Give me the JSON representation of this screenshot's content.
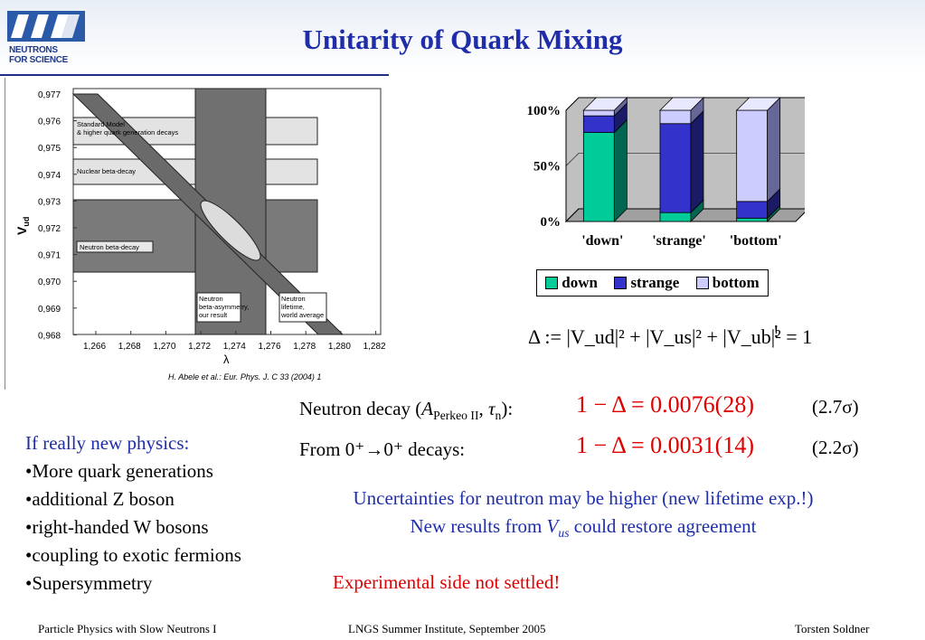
{
  "header": {
    "title": "Unitarity of Quark Mixing",
    "logo_text_line1": "NEUTRONS",
    "logo_text_line2": "FOR SCIENCE"
  },
  "plot": {
    "y_ticks": [
      "0,977",
      "0,976",
      "0,975",
      "0,974",
      "0,973",
      "0,972",
      "0,971",
      "0,970",
      "0,969",
      "0,968"
    ],
    "x_ticks": [
      "1,266",
      "1,268",
      "1,270",
      "1,272",
      "1,274",
      "1,276",
      "1,278",
      "1,280",
      "1,282"
    ],
    "y_label": "V",
    "y_label_sub": "ud",
    "x_label": "λ",
    "band_labels": {
      "standard_model_1": "Standard Model",
      "standard_model_2": "& higher quark generation decays",
      "nuclear": "Nuclear beta-decay",
      "neutron": "Neutron beta-decay",
      "asym_1": "Neutron",
      "asym_2": "beta-asymmetry,",
      "asym_3": "our result",
      "life_1": "Neutron",
      "life_2": "lifetime,",
      "life_3": "world average"
    },
    "caption": "H. Abele et al.: Eur. Phys. J. C 33 (2004) 1"
  },
  "chart_data": {
    "type": "bar",
    "categories": [
      "'down'",
      "'strange'",
      "'bottom'"
    ],
    "series": [
      {
        "name": "down",
        "values": [
          80,
          8,
          3
        ]
      },
      {
        "name": "strange",
        "values": [
          15,
          80,
          15
        ]
      },
      {
        "name": "bottom",
        "values": [
          5,
          12,
          82
        ]
      }
    ],
    "y_ticks": [
      "0%",
      "50%",
      "100%"
    ],
    "ylim": [
      0,
      100
    ],
    "colors": {
      "down": "#00cc99",
      "strange": "#3333cc",
      "bottom": "#ccccff"
    },
    "legend_placement": "bottom"
  },
  "equations": {
    "unitarity": "Δ := |V_ud|² + |V_us|² + |V_ub|² = 1",
    "bang": "!",
    "neutron_label": "Neutron decay",
    "neutron_eq": "1 − Δ = 0.0076(28)",
    "neutron_sigma": "(2.7σ)",
    "nuclear_label": "From 0⁺→0⁺ decays:",
    "nuclear_eq": "1 − Δ = 0.0031(14)",
    "nuclear_sigma": "(2.2σ)"
  },
  "notes": {
    "line1": "Uncertainties for neutron may be higher (new lifetime exp.!)",
    "line2_pre": "New results from ",
    "line2_sym": "V",
    "line2_sub": "us",
    "line2_post": " could restore agreement",
    "experimental": "Experimental side not settled!"
  },
  "physics": {
    "heading": "If really new physics:",
    "items": [
      "•More quark generations",
      "•additional Z boson",
      "•right-handed W bosons",
      "•coupling to exotic fermions",
      "•Supersymmetry"
    ]
  },
  "footer": {
    "left": "Particle Physics with Slow Neutrons I",
    "center": "LNGS Summer Institute, September 2005",
    "right": "Torsten Soldner"
  }
}
